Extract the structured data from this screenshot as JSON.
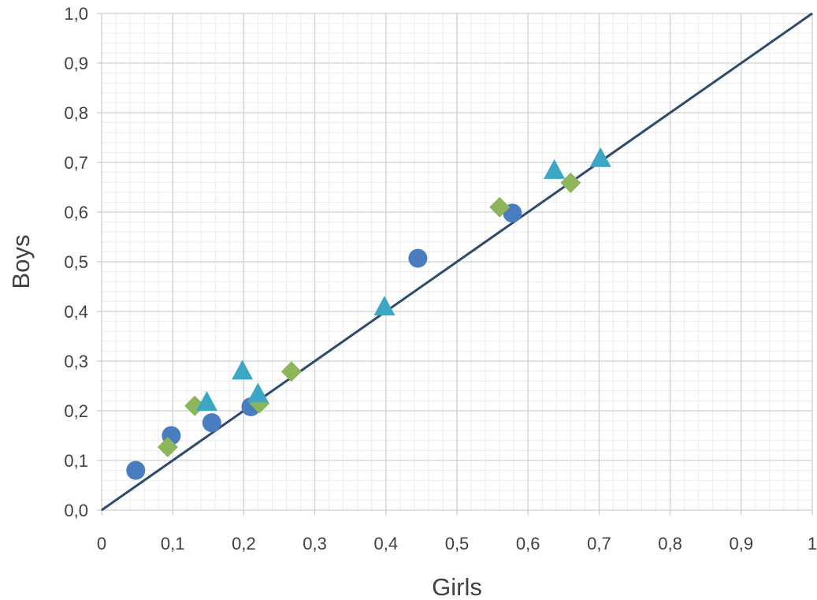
{
  "chart_data": {
    "type": "scatter",
    "title": "",
    "xlabel": "Girls",
    "ylabel": "Boys",
    "xlim": [
      0,
      1
    ],
    "ylim": [
      0,
      1
    ],
    "x_ticks": [
      0,
      0.1,
      0.2,
      0.3,
      0.4,
      0.5,
      0.6,
      0.7,
      0.8,
      0.9,
      1
    ],
    "x_tick_labels": [
      "0",
      "0,1",
      "0,2",
      "0,3",
      "0,4",
      "0,5",
      "0,6",
      "0,7",
      "0,8",
      "0,9",
      "1"
    ],
    "y_ticks": [
      0,
      0.1,
      0.2,
      0.3,
      0.4,
      0.5,
      0.6,
      0.7,
      0.8,
      0.9,
      1
    ],
    "y_tick_labels": [
      "0,0",
      "0,1",
      "0,2",
      "0,3",
      "0,4",
      "0,5",
      "0,6",
      "0,7",
      "0,8",
      "0,9",
      "1,0"
    ],
    "grid": true,
    "minor_grid": true,
    "legend": "none",
    "reference_line": {
      "points": [
        [
          0,
          0
        ],
        [
          1,
          1
        ]
      ],
      "color": "#2E4B6E"
    },
    "series": [
      {
        "marker": "circle",
        "color": "#4A7CC0",
        "points": [
          {
            "x": 0.048,
            "y": 0.08
          },
          {
            "x": 0.098,
            "y": 0.15
          },
          {
            "x": 0.155,
            "y": 0.176
          },
          {
            "x": 0.21,
            "y": 0.208
          },
          {
            "x": 0.445,
            "y": 0.507
          },
          {
            "x": 0.578,
            "y": 0.598
          }
        ]
      },
      {
        "marker": "diamond",
        "color": "#8DB55A",
        "points": [
          {
            "x": 0.093,
            "y": 0.127
          },
          {
            "x": 0.131,
            "y": 0.21
          },
          {
            "x": 0.222,
            "y": 0.215
          },
          {
            "x": 0.267,
            "y": 0.279
          },
          {
            "x": 0.56,
            "y": 0.61
          },
          {
            "x": 0.66,
            "y": 0.659
          }
        ]
      },
      {
        "marker": "triangle",
        "color": "#3BA7C4",
        "points": [
          {
            "x": 0.148,
            "y": 0.215
          },
          {
            "x": 0.198,
            "y": 0.278
          },
          {
            "x": 0.22,
            "y": 0.232
          },
          {
            "x": 0.398,
            "y": 0.407
          },
          {
            "x": 0.637,
            "y": 0.682
          },
          {
            "x": 0.702,
            "y": 0.706
          }
        ]
      }
    ]
  }
}
